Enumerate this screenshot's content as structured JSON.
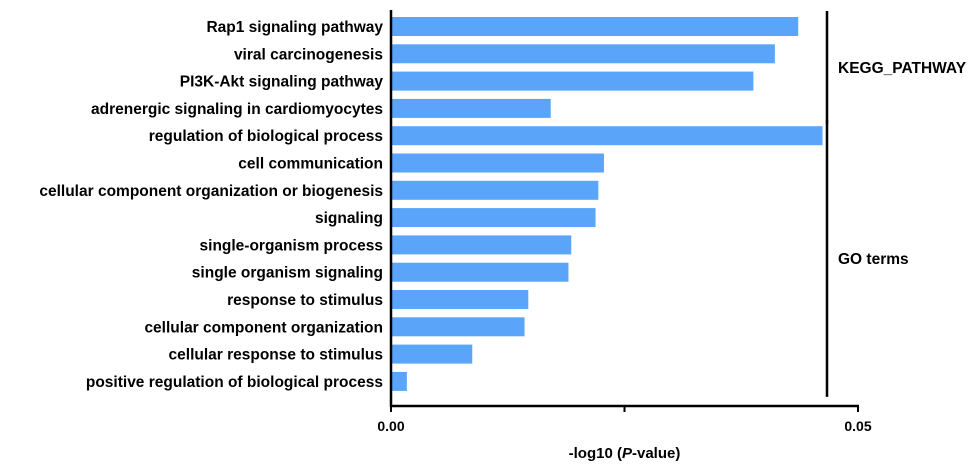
{
  "chart_data": {
    "type": "bar",
    "orientation": "horizontal",
    "categories": [
      "Rap1 signaling pathway",
      "viral carcinogenesis",
      "PI3K-Akt signaling pathway",
      "adrenergic signaling in cardiomyocytes",
      "regulation of biological process",
      "cell communication",
      "cellular component  organization or biogenesis",
      "signaling",
      "single-organism process",
      "single organism signaling",
      "response to stimulus",
      "cellular component organization",
      "cellular response to stimulus",
      "positive regulation of biological process"
    ],
    "values": [
      0.0436,
      0.0411,
      0.0388,
      0.0171,
      0.0462,
      0.0228,
      0.0222,
      0.0219,
      0.0193,
      0.019,
      0.0147,
      0.0143,
      0.0087,
      0.0017
    ],
    "xlim": [
      0,
      0.05
    ],
    "xticks": [
      0,
      0.025,
      0.05
    ],
    "xtick_labels": [
      "0.00",
      "",
      "0.05"
    ],
    "xlabel_prefix": "-log10 (",
    "xlabel_italic": "P",
    "xlabel_suffix": "-value)",
    "bar_color": "#5aa5fa",
    "groups": [
      {
        "label": "KEGG_PATHWAY",
        "start": 0,
        "end": 3
      },
      {
        "label": "GO terms",
        "start": 4,
        "end": 13
      }
    ],
    "grid": false,
    "legend": "none"
  }
}
